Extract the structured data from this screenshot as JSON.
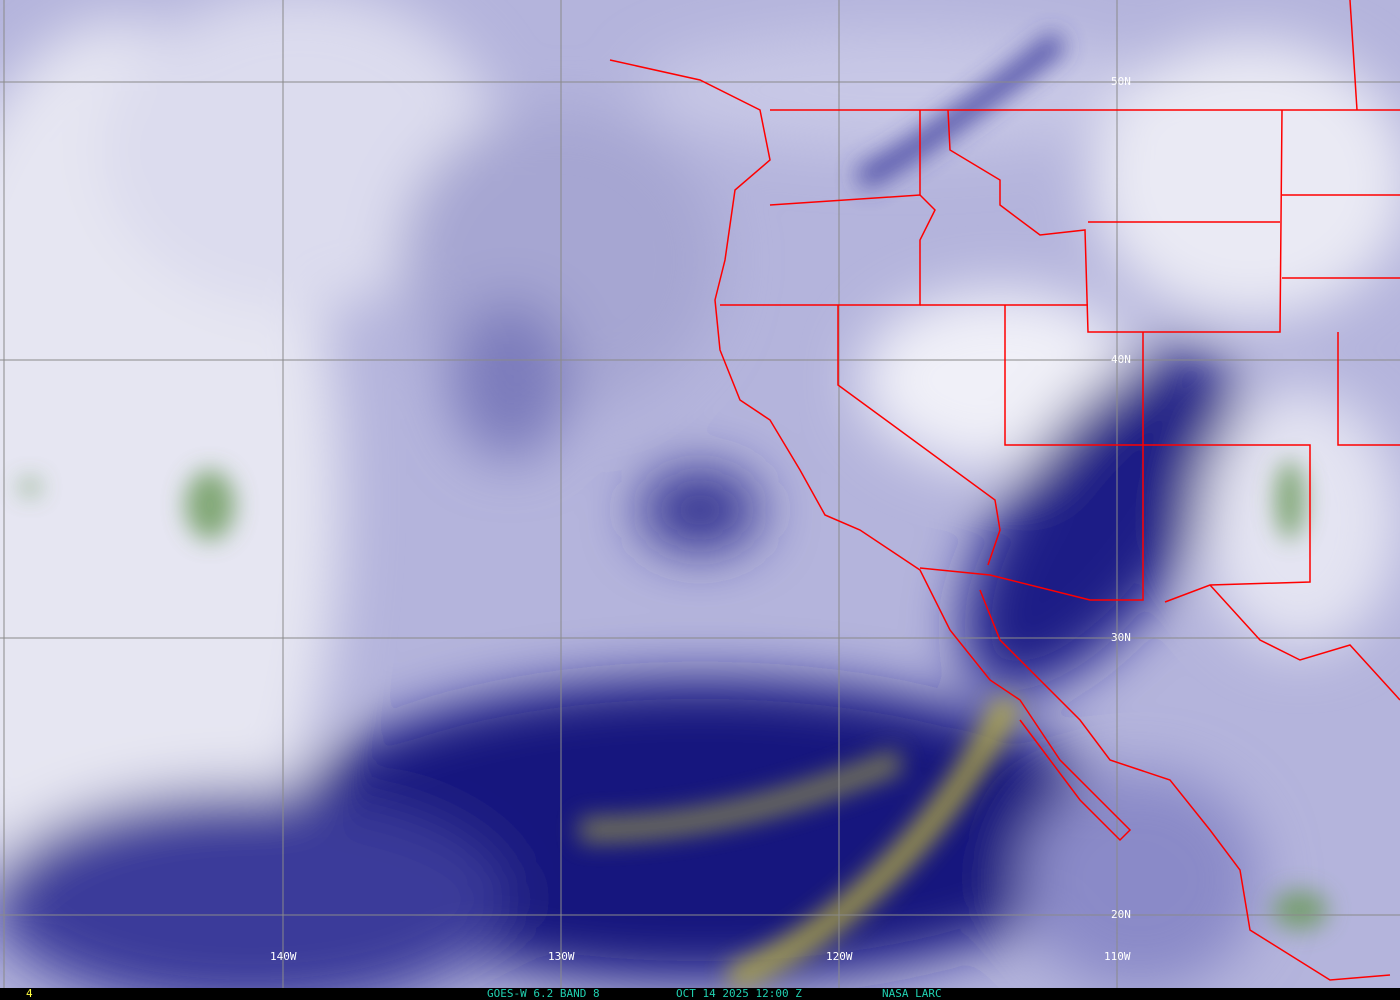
{
  "map": {
    "lat_labels": [
      "50N",
      "40N",
      "30N",
      "20N"
    ],
    "lon_labels": [
      "140W",
      "130W",
      "120W",
      "110W"
    ],
    "colors": {
      "dry": "#0b0b7a",
      "moist": "#e8e8f4",
      "very_dry": "#b0a830",
      "cold_cloud": "#6a9a5a",
      "borders": "#ff0000",
      "grid": "#8a8a8a"
    }
  },
  "footer": {
    "frame": "4",
    "satellite": "GOES-W 6.2 BAND 8",
    "datetime": "OCT 14 2025 12:00 Z",
    "credit": "NASA LARC"
  }
}
